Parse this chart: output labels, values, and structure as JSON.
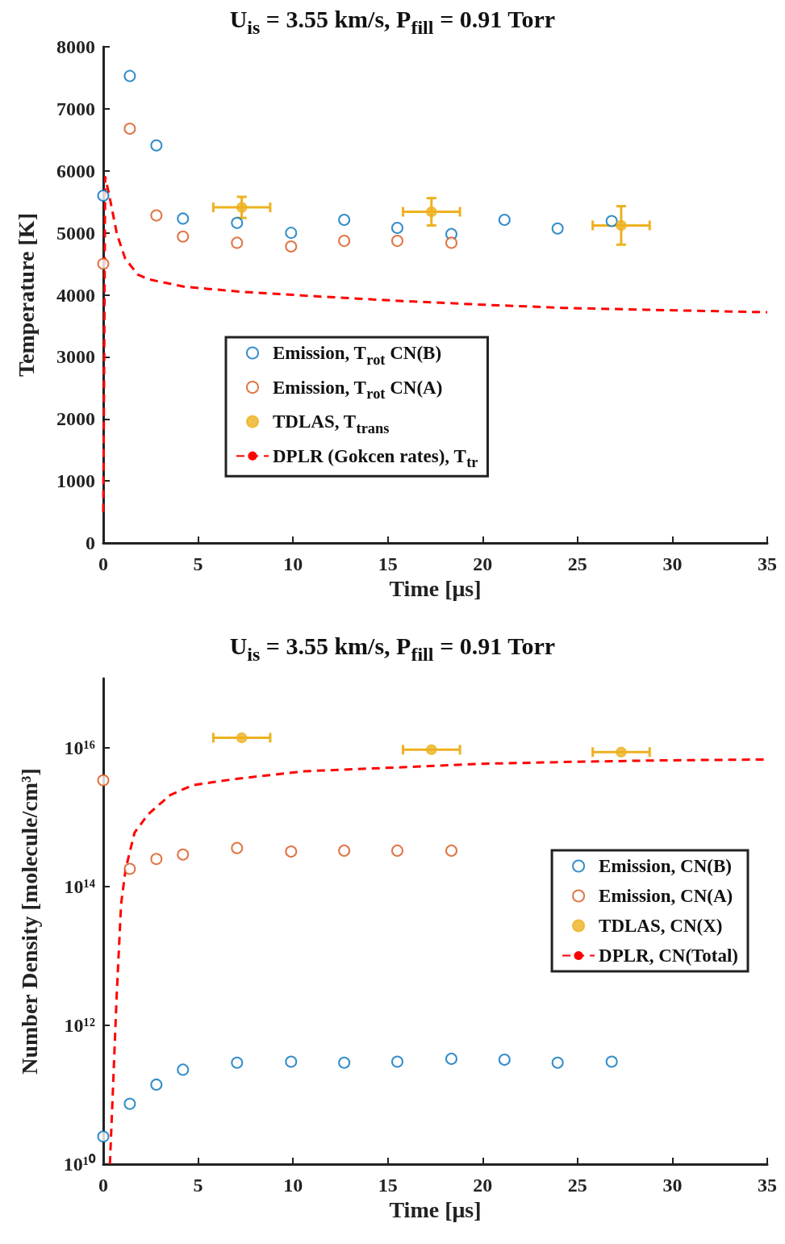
{
  "chart_data": [
    {
      "type": "scatter",
      "title": "U$_{is}$ = 3.55 km/s, P$_{fill}$ = 0.91 Torr",
      "xlabel": "Time [μs]",
      "ylabel": "Temperature [K]",
      "xlim": [
        0,
        35
      ],
      "xticks": [
        0,
        5,
        10,
        15,
        20,
        25,
        30,
        35
      ],
      "ylim": [
        0,
        8000
      ],
      "yticks": [
        0,
        1000,
        2000,
        3000,
        4000,
        5000,
        6000,
        7000,
        8000
      ],
      "grid": false,
      "legend": "center",
      "marker": "circle",
      "series": [
        {
          "name": "Emission, T$_{rot}$ CN(B)",
          "color": "#0072bd",
          "x": [
            0,
            1.4,
            2.8,
            4.2,
            7.05,
            9.9,
            12.7,
            15.5,
            18.35,
            21.15,
            23.95,
            26.8
          ],
          "values": [
            5600,
            7530,
            6410,
            5230,
            5160,
            5000,
            5210,
            5080,
            4980,
            5210,
            5070,
            5190
          ]
        },
        {
          "name": "Emission, T$_{rot}$ CN(A)",
          "color": "#d95319",
          "x": [
            0,
            1.4,
            2.8,
            4.2,
            7.05,
            9.9,
            12.7,
            15.5,
            18.35
          ],
          "values": [
            4500,
            6680,
            5280,
            4940,
            4840,
            4780,
            4870,
            4870,
            4840
          ]
        },
        {
          "name": "TDLAS, T$_{trans}$",
          "color": "#edb120",
          "x": [
            7.3,
            17.3,
            27.3
          ],
          "values": [
            5410,
            5340,
            5120
          ],
          "errors": [
            170,
            220,
            310
          ],
          "xerrors": [
            1.5,
            1.5,
            1.5
          ]
        },
        {
          "name": "DPLR (Gokcen rates), T$_{tr}$",
          "type": "line",
          "line_style": "dashed",
          "marker": "none",
          "color": "#ff0000",
          "x": [
            0,
            0.05,
            0.1,
            0.3,
            0.72,
            1.15,
            1.8,
            2.4,
            4.3,
            7.3,
            11.6,
            15.8,
            20.1,
            24.3,
            28.6,
            35
          ],
          "values": [
            500,
            3000,
            5900,
            5630,
            4980,
            4590,
            4330,
            4250,
            4130,
            4050,
            3970,
            3900,
            3840,
            3790,
            3760,
            3720
          ]
        }
      ]
    },
    {
      "type": "scatter",
      "title": "U$_{is}$ = 3.55 km/s, P$_{fill}$ = 0.91 Torr",
      "xlabel": "Time [μs]",
      "ylabel": "Number Density [molecule/cm³]",
      "log": "y",
      "xlim": [
        0,
        35
      ],
      "xticks": [
        0,
        5,
        10,
        15,
        20,
        25,
        30,
        35
      ],
      "ylim": [
        10000000000.0,
        1e+17
      ],
      "yticks": [
        {
          "value": 10000000000.0,
          "label": "10¹⁰"
        },
        {
          "value": 1000000000000.0,
          "label": "10¹²"
        },
        {
          "value": 100000000000000.0,
          "label": "10¹⁴"
        },
        {
          "value": 1e+16,
          "label": "10¹⁶"
        }
      ],
      "grid": false,
      "legend": "right",
      "marker": "circle",
      "series": [
        {
          "name": "Emission, CN(B)",
          "color": "#0072bd",
          "x": [
            0,
            1.4,
            2.8,
            4.2,
            7.05,
            9.9,
            12.7,
            15.5,
            18.35,
            21.15,
            23.95,
            26.8
          ],
          "values": [
            25000000000.0,
            74000000000.0,
            140000000000.0,
            230000000000.0,
            290000000000.0,
            300000000000.0,
            290000000000.0,
            300000000000.0,
            330000000000.0,
            320000000000.0,
            290000000000.0,
            300000000000.0
          ]
        },
        {
          "name": "Emission, CN(A)",
          "color": "#d95319",
          "x": [
            0,
            1.4,
            2.8,
            4.2,
            7.05,
            9.9,
            12.7,
            15.5,
            18.35
          ],
          "values": [
            3400000000000000.0,
            180000000000000.0,
            250000000000000.0,
            290000000000000.0,
            360000000000000.0,
            320000000000000.0,
            330000000000000.0,
            330000000000000.0,
            330000000000000.0
          ]
        },
        {
          "name": "TDLAS, CN(X)",
          "color": "#edb120",
          "x": [
            7.3,
            17.3,
            27.3
          ],
          "values": [
            1.4e+16,
            9400000000000000.0,
            8700000000000000.0
          ],
          "xerrors": [
            1.5,
            1.5,
            1.5
          ]
        },
        {
          "name": "DPLR, CN(Total)",
          "type": "line",
          "line_style": "dashed",
          "marker": "none",
          "color": "#ff0000",
          "x": [
            0.35,
            0.52,
            0.71,
            0.94,
            1.18,
            1.65,
            2.36,
            3.54,
            4.72,
            7.08,
            10.6,
            15.3,
            20.0,
            24.8,
            29.5,
            35
          ],
          "values": [
            10000000000.0,
            140000000000.0,
            2800000000000.0,
            56000000000000.0,
            180000000000000.0,
            600000000000000.0,
            1100000000000000.0,
            2100000000000000.0,
            2900000000000000.0,
            3600000000000000.0,
            4600000000000000.0,
            5200000000000000.0,
            5900000000000000.0,
            6300000000000000.0,
            6600000000000000.0,
            6800000000000000.0
          ]
        }
      ]
    }
  ]
}
